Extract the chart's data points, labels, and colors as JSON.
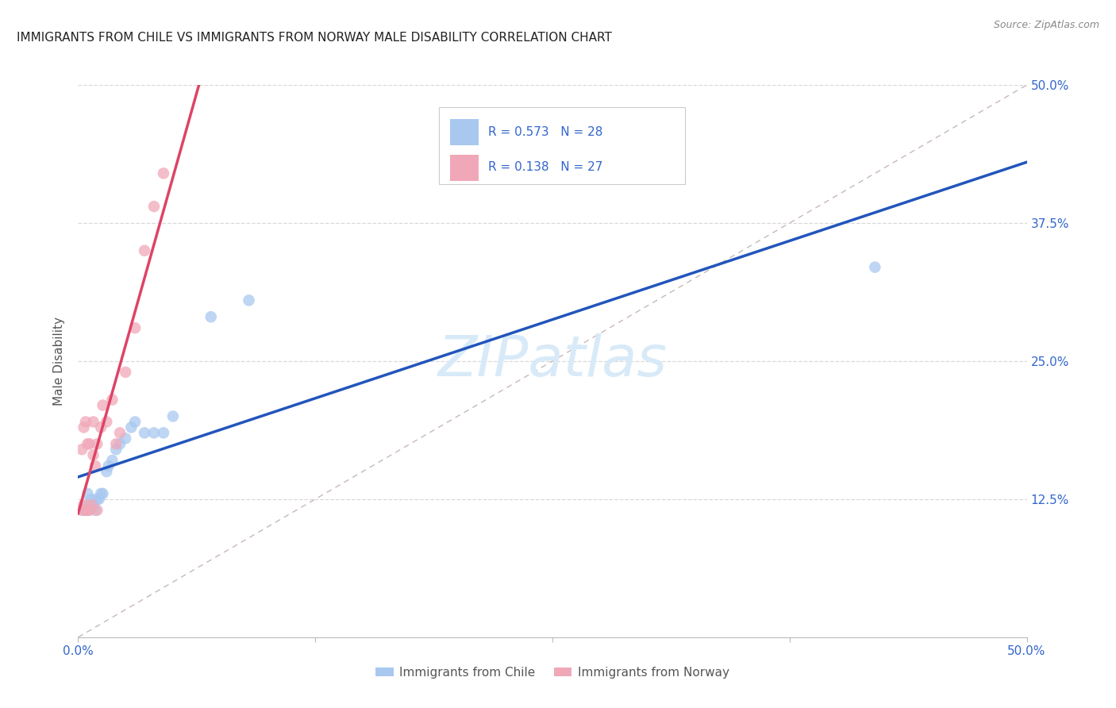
{
  "title": "IMMIGRANTS FROM CHILE VS IMMIGRANTS FROM NORWAY MALE DISABILITY CORRELATION CHART",
  "source": "Source: ZipAtlas.com",
  "ylabel": "Male Disability",
  "xlim": [
    0.0,
    0.5
  ],
  "ylim": [
    0.0,
    0.5
  ],
  "background_color": "#ffffff",
  "grid_color": "#d8d8d8",
  "chile_color": "#a8c8f0",
  "norway_color": "#f0a8b8",
  "chile_line_color": "#2255bb",
  "norway_line_color": "#dd4466",
  "diagonal_color": "#c8b8b8",
  "watermark": "ZIPatlas",
  "watermark_color": "#d8eaf8",
  "chile_x": [
    0.003,
    0.004,
    0.005,
    0.005,
    0.006,
    0.007,
    0.007,
    0.008,
    0.009,
    0.01,
    0.011,
    0.012,
    0.013,
    0.015,
    0.016,
    0.018,
    0.02,
    0.022,
    0.025,
    0.028,
    0.03,
    0.035,
    0.04,
    0.045,
    0.05,
    0.07,
    0.09,
    0.42
  ],
  "chile_y": [
    0.115,
    0.118,
    0.115,
    0.13,
    0.12,
    0.118,
    0.125,
    0.12,
    0.115,
    0.125,
    0.125,
    0.13,
    0.13,
    0.15,
    0.155,
    0.16,
    0.17,
    0.175,
    0.18,
    0.19,
    0.195,
    0.185,
    0.185,
    0.185,
    0.2,
    0.29,
    0.305,
    0.335
  ],
  "norway_x": [
    0.002,
    0.002,
    0.003,
    0.003,
    0.004,
    0.004,
    0.005,
    0.005,
    0.006,
    0.006,
    0.007,
    0.008,
    0.008,
    0.009,
    0.01,
    0.01,
    0.012,
    0.013,
    0.015,
    0.018,
    0.02,
    0.022,
    0.025,
    0.03,
    0.035,
    0.04,
    0.045
  ],
  "norway_y": [
    0.115,
    0.17,
    0.12,
    0.19,
    0.115,
    0.195,
    0.115,
    0.175,
    0.115,
    0.175,
    0.12,
    0.165,
    0.195,
    0.155,
    0.115,
    0.175,
    0.19,
    0.21,
    0.195,
    0.215,
    0.175,
    0.185,
    0.24,
    0.28,
    0.35,
    0.39,
    0.42
  ]
}
